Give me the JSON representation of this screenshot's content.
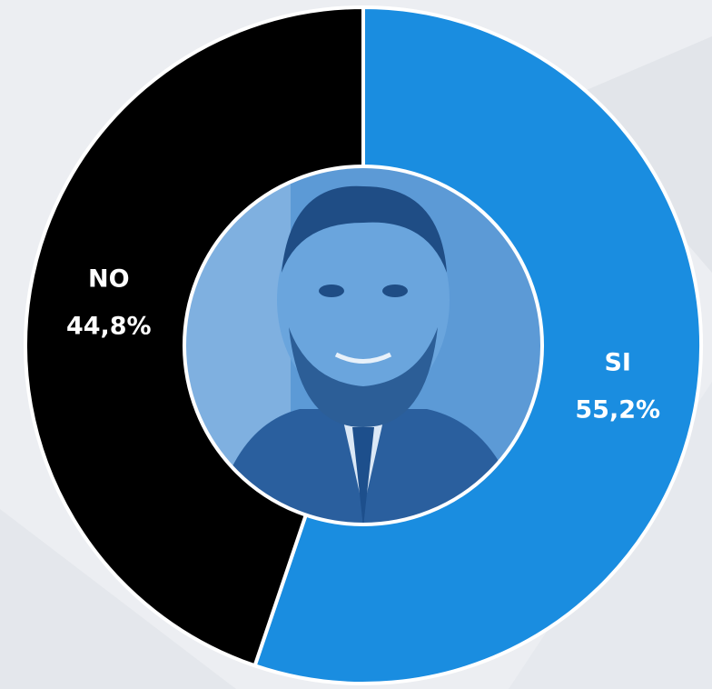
{
  "chart_data": {
    "type": "donut",
    "categories": [
      "SI",
      "NO"
    ],
    "values": [
      55.2,
      44.8
    ],
    "value_labels": [
      "55,2%",
      "44,8%"
    ],
    "colors": [
      "#1a8de0",
      "#000000"
    ]
  }
}
